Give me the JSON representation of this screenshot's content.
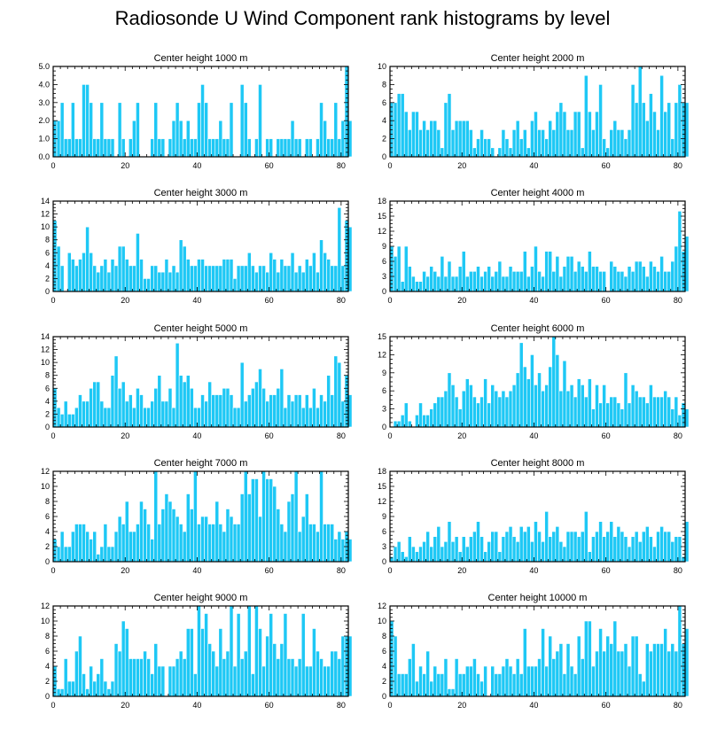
{
  "title": "Radiosonde U Wind Component rank histograms by level",
  "colors": {
    "bar": "#1ec8f5",
    "bar_stroke": "#ffffff",
    "axis": "#000000"
  },
  "chart_data": [
    {
      "type": "bar",
      "title": "Center height 1000 m",
      "xlim": [
        0,
        82
      ],
      "ylim": [
        0,
        5
      ],
      "xticks": [
        0,
        20,
        40,
        60,
        80
      ],
      "yticks": [
        0,
        1,
        2,
        3,
        4,
        5
      ],
      "ytick_labels": [
        "0.0",
        "1.0",
        "2.0",
        "3.0",
        "4.0",
        "5.0"
      ],
      "values": [
        2,
        2,
        3,
        1,
        1,
        3,
        1,
        1,
        4,
        4,
        3,
        1,
        1,
        3,
        1,
        1,
        1,
        0,
        3,
        1,
        0,
        1,
        2,
        3,
        0,
        0,
        0,
        1,
        3,
        1,
        1,
        0,
        1,
        2,
        3,
        2,
        1,
        2,
        1,
        1,
        3,
        4,
        3,
        1,
        1,
        1,
        2,
        1,
        1,
        3,
        0,
        0,
        4,
        3,
        1,
        0,
        1,
        4,
        0,
        1,
        1,
        0,
        1,
        1,
        1,
        1,
        2,
        1,
        1,
        0,
        1,
        1,
        0,
        1,
        3,
        2,
        1,
        1,
        3,
        1,
        2,
        5,
        2
      ]
    },
    {
      "type": "bar",
      "title": "Center height 2000 m",
      "xlim": [
        0,
        82
      ],
      "ylim": [
        0,
        10
      ],
      "xticks": [
        0,
        20,
        40,
        60,
        80
      ],
      "yticks": [
        0,
        2,
        4,
        6,
        8,
        10
      ],
      "ytick_labels": [
        "0",
        "2",
        "4",
        "6",
        "8",
        "10"
      ],
      "values": [
        6,
        6,
        7,
        7,
        5,
        3,
        5,
        5,
        3,
        4,
        3,
        4,
        4,
        3,
        1,
        6,
        7,
        3,
        4,
        4,
        4,
        4,
        3,
        1,
        2,
        3,
        2,
        2,
        1,
        0,
        1,
        3,
        2,
        1,
        3,
        4,
        2,
        3,
        1,
        4,
        5,
        3,
        3,
        2,
        4,
        3,
        5,
        6,
        5,
        3,
        3,
        5,
        5,
        1,
        9,
        5,
        3,
        5,
        8,
        2,
        1,
        3,
        4,
        3,
        3,
        2,
        3,
        8,
        6,
        10,
        6,
        4,
        7,
        5,
        3,
        9,
        5,
        6,
        2,
        6,
        8,
        6,
        6
      ]
    },
    {
      "type": "bar",
      "title": "Center height 3000 m",
      "xlim": [
        0,
        82
      ],
      "ylim": [
        0,
        14
      ],
      "xticks": [
        0,
        20,
        40,
        60,
        80
      ],
      "yticks": [
        0,
        2,
        4,
        6,
        8,
        10,
        12,
        14
      ],
      "ytick_labels": [
        "0",
        "2",
        "4",
        "6",
        "8",
        "10",
        "12",
        "14"
      ],
      "values": [
        11,
        7,
        4,
        0,
        6,
        5,
        4,
        5,
        6,
        10,
        6,
        4,
        3,
        4,
        5,
        3,
        5,
        4,
        7,
        7,
        5,
        4,
        4,
        9,
        5,
        2,
        2,
        4,
        4,
        3,
        3,
        5,
        3,
        4,
        3,
        8,
        7,
        5,
        4,
        4,
        5,
        5,
        4,
        4,
        4,
        4,
        4,
        5,
        5,
        5,
        2,
        4,
        4,
        4,
        6,
        4,
        3,
        4,
        4,
        3,
        6,
        5,
        3,
        5,
        4,
        4,
        6,
        3,
        4,
        3,
        5,
        4,
        6,
        3,
        8,
        6,
        5,
        4,
        4,
        13,
        4,
        11,
        10
      ]
    },
    {
      "type": "bar",
      "title": "Center height 4000 m",
      "xlim": [
        0,
        82
      ],
      "ylim": [
        0,
        18
      ],
      "xticks": [
        0,
        20,
        40,
        60,
        80
      ],
      "yticks": [
        0,
        3,
        6,
        9,
        12,
        15,
        18
      ],
      "ytick_labels": [
        "0",
        "3",
        "6",
        "9",
        "12",
        "15",
        "18"
      ],
      "values": [
        9,
        7,
        9,
        2,
        9,
        5,
        3,
        2,
        2,
        4,
        3,
        5,
        4,
        3,
        7,
        3,
        6,
        3,
        3,
        5,
        8,
        3,
        4,
        4,
        5,
        3,
        4,
        5,
        3,
        4,
        6,
        3,
        3,
        5,
        4,
        4,
        4,
        8,
        3,
        5,
        9,
        4,
        3,
        8,
        8,
        4,
        7,
        3,
        5,
        7,
        7,
        4,
        6,
        5,
        4,
        8,
        5,
        5,
        4,
        4,
        0,
        6,
        5,
        4,
        4,
        3,
        5,
        4,
        6,
        6,
        5,
        3,
        6,
        5,
        4,
        7,
        4,
        4,
        6,
        9,
        16,
        8,
        11
      ]
    },
    {
      "type": "bar",
      "title": "Center height 5000 m",
      "xlim": [
        0,
        82
      ],
      "ylim": [
        0,
        14
      ],
      "xticks": [
        0,
        20,
        40,
        60,
        80
      ],
      "yticks": [
        0,
        2,
        4,
        6,
        8,
        10,
        12,
        14
      ],
      "ytick_labels": [
        "0",
        "2",
        "4",
        "6",
        "8",
        "10",
        "12",
        "14"
      ],
      "values": [
        6,
        3,
        2,
        4,
        2,
        2,
        3,
        5,
        4,
        4,
        6,
        7,
        7,
        4,
        3,
        3,
        8,
        11,
        6,
        7,
        4,
        5,
        3,
        6,
        5,
        3,
        3,
        4,
        6,
        8,
        4,
        4,
        6,
        3,
        13,
        8,
        7,
        8,
        6,
        3,
        3,
        5,
        4,
        7,
        5,
        5,
        5,
        6,
        6,
        5,
        3,
        3,
        10,
        4,
        5,
        6,
        7,
        9,
        6,
        4,
        5,
        5,
        6,
        9,
        3,
        5,
        4,
        5,
        5,
        3,
        5,
        3,
        6,
        3,
        5,
        4,
        8,
        5,
        11,
        10,
        4,
        8,
        5
      ]
    },
    {
      "type": "bar",
      "title": "Center height 6000 m",
      "xlim": [
        0,
        82
      ],
      "ylim": [
        0,
        15
      ],
      "xticks": [
        0,
        20,
        40,
        60,
        80
      ],
      "yticks": [
        0,
        3,
        6,
        9,
        12,
        15
      ],
      "ytick_labels": [
        "0",
        "3",
        "6",
        "9",
        "12",
        "15"
      ],
      "values": [
        0,
        1,
        1,
        2,
        4,
        1,
        0,
        2,
        4,
        2,
        2,
        3,
        4,
        5,
        5,
        6,
        9,
        7,
        5,
        3,
        6,
        8,
        7,
        5,
        4,
        5,
        8,
        4,
        7,
        6,
        5,
        6,
        5,
        6,
        7,
        9,
        14,
        10,
        8,
        12,
        7,
        9,
        6,
        7,
        10,
        15,
        12,
        6,
        11,
        6,
        7,
        5,
        8,
        7,
        5,
        8,
        3,
        7,
        4,
        7,
        4,
        5,
        5,
        4,
        3,
        9,
        4,
        7,
        6,
        5,
        5,
        4,
        7,
        5,
        5,
        5,
        6,
        5,
        3,
        5,
        2,
        4,
        3
      ]
    },
    {
      "type": "bar",
      "title": "Center height 7000 m",
      "xlim": [
        0,
        82
      ],
      "ylim": [
        0,
        12
      ],
      "xticks": [
        0,
        20,
        40,
        60,
        80
      ],
      "yticks": [
        0,
        2,
        4,
        6,
        8,
        10,
        12
      ],
      "ytick_labels": [
        "0",
        "2",
        "4",
        "6",
        "8",
        "10",
        "12"
      ],
      "values": [
        3,
        2,
        4,
        2,
        2,
        4,
        5,
        5,
        5,
        4,
        3,
        4,
        1,
        2,
        5,
        2,
        2,
        4,
        6,
        5,
        8,
        4,
        4,
        5,
        8,
        7,
        5,
        3,
        12,
        5,
        7,
        9,
        8,
        7,
        6,
        5,
        4,
        9,
        7,
        12,
        5,
        6,
        6,
        5,
        5,
        8,
        5,
        4,
        7,
        6,
        5,
        5,
        9,
        12,
        9,
        11,
        11,
        6,
        12,
        11,
        11,
        10,
        7,
        5,
        4,
        8,
        9,
        12,
        4,
        6,
        9,
        5,
        5,
        4,
        12,
        5,
        5,
        5,
        3,
        4,
        3,
        4,
        3
      ]
    },
    {
      "type": "bar",
      "title": "Center height 8000 m",
      "xlim": [
        0,
        82
      ],
      "ylim": [
        0,
        18
      ],
      "xticks": [
        0,
        20,
        40,
        60,
        80
      ],
      "yticks": [
        0,
        3,
        6,
        9,
        12,
        15,
        18
      ],
      "ytick_labels": [
        "0",
        "3",
        "6",
        "9",
        "12",
        "15",
        "18"
      ],
      "values": [
        1,
        3,
        4,
        2,
        1,
        5,
        3,
        2,
        3,
        4,
        6,
        3,
        5,
        7,
        3,
        4,
        8,
        4,
        5,
        2,
        5,
        3,
        5,
        6,
        8,
        5,
        2,
        4,
        6,
        6,
        2,
        5,
        6,
        7,
        5,
        4,
        7,
        6,
        7,
        4,
        8,
        6,
        4,
        10,
        5,
        6,
        7,
        4,
        3,
        6,
        6,
        6,
        5,
        6,
        10,
        2,
        5,
        6,
        8,
        5,
        6,
        8,
        5,
        7,
        6,
        5,
        3,
        5,
        6,
        4,
        6,
        7,
        5,
        3,
        6,
        7,
        6,
        6,
        4,
        5,
        5,
        1,
        8
      ]
    },
    {
      "type": "bar",
      "title": "Center height 9000 m",
      "xlim": [
        0,
        82
      ],
      "ylim": [
        0,
        12
      ],
      "xticks": [
        0,
        20,
        40,
        60,
        80
      ],
      "yticks": [
        0,
        2,
        4,
        6,
        8,
        10,
        12
      ],
      "ytick_labels": [
        "0",
        "2",
        "4",
        "6",
        "8",
        "10",
        "12"
      ],
      "values": [
        4,
        1,
        1,
        5,
        2,
        2,
        6,
        8,
        3,
        1,
        4,
        2,
        3,
        5,
        2,
        1,
        2,
        7,
        6,
        10,
        9,
        5,
        5,
        5,
        5,
        6,
        5,
        3,
        7,
        4,
        4,
        0,
        4,
        4,
        5,
        6,
        5,
        9,
        9,
        3,
        12,
        9,
        11,
        7,
        6,
        4,
        9,
        5,
        6,
        12,
        4,
        11,
        5,
        6,
        12,
        3,
        12,
        9,
        4,
        8,
        11,
        7,
        5,
        7,
        11,
        5,
        5,
        4,
        5,
        11,
        4,
        4,
        9,
        6,
        5,
        4,
        4,
        6,
        6,
        5,
        8,
        8,
        8
      ]
    },
    {
      "type": "bar",
      "title": "Center height 10000 m",
      "xlim": [
        0,
        82
      ],
      "ylim": [
        0,
        12
      ],
      "xticks": [
        0,
        20,
        40,
        60,
        80
      ],
      "yticks": [
        0,
        2,
        4,
        6,
        8,
        10,
        12
      ],
      "ytick_labels": [
        "0",
        "2",
        "4",
        "6",
        "8",
        "10",
        "12"
      ],
      "values": [
        10,
        8,
        3,
        3,
        3,
        5,
        7,
        2,
        4,
        3,
        6,
        2,
        4,
        3,
        3,
        5,
        1,
        1,
        5,
        3,
        3,
        4,
        4,
        5,
        3,
        2,
        4,
        0,
        4,
        3,
        3,
        4,
        5,
        4,
        3,
        5,
        3,
        9,
        4,
        4,
        4,
        5,
        9,
        4,
        8,
        5,
        6,
        7,
        3,
        7,
        4,
        3,
        8,
        5,
        10,
        10,
        4,
        6,
        9,
        6,
        8,
        7,
        10,
        6,
        6,
        7,
        4,
        8,
        8,
        3,
        2,
        7,
        6,
        7,
        7,
        7,
        9,
        6,
        7,
        6,
        12,
        7,
        9
      ]
    }
  ]
}
